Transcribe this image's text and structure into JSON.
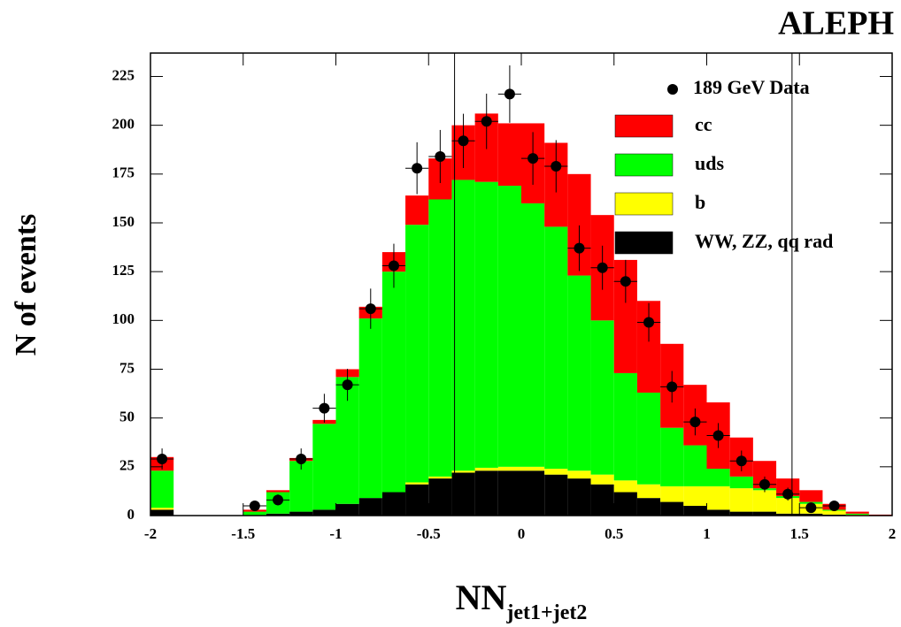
{
  "chart_data": {
    "type": "histogram",
    "title": "ALEPH",
    "ylabel": "N of events",
    "xlabel": "NN",
    "xlabel_sub": "jet1+jet2",
    "bins": [
      -2,
      -1.875,
      -1.75,
      -1.625,
      -1.5,
      -1.375,
      -1.25,
      -1.125,
      -1,
      -0.875,
      -0.75,
      -0.625,
      -0.5,
      -0.375,
      -0.25,
      -0.125,
      0,
      0.125,
      0.25,
      0.375,
      0.5,
      0.625,
      0.75,
      0.875,
      1,
      1.125,
      1.25,
      1.375,
      1.5,
      1.625,
      1.75,
      1.875,
      2
    ],
    "series": [
      {
        "name": "WW, ZZ, qq rad",
        "color": "#000000",
        "values": [
          3,
          0,
          0,
          0,
          0,
          1,
          2,
          3,
          6,
          9,
          12,
          16,
          19,
          22,
          23,
          23,
          23,
          21,
          19,
          16,
          12,
          9,
          7,
          5,
          3,
          2,
          2,
          1,
          1,
          0.5,
          0,
          0
        ]
      },
      {
        "name": "b",
        "color": "#ffff00",
        "values": [
          1,
          0,
          0,
          0,
          0,
          0,
          0,
          0,
          0,
          0,
          0,
          1,
          1,
          1,
          1.5,
          2,
          2,
          3,
          4,
          5,
          6,
          7,
          8,
          10,
          12,
          12,
          11,
          8,
          5,
          2,
          0.5,
          0
        ]
      },
      {
        "name": "uds",
        "color": "#00ff00",
        "values": [
          19,
          0,
          0,
          0,
          2,
          11,
          26,
          44,
          65,
          92,
          113,
          132,
          142,
          149,
          146.5,
          144,
          135,
          124,
          100,
          79,
          55,
          47,
          30,
          21,
          9,
          6,
          1,
          1,
          1,
          0.5,
          0.5,
          0
        ]
      },
      {
        "name": "cc",
        "color": "#ff0000",
        "values": [
          7,
          0,
          0,
          0,
          1,
          1,
          1.5,
          2,
          4,
          6,
          10,
          15,
          21,
          28,
          35,
          32,
          41,
          43,
          52,
          54,
          58,
          47,
          43,
          31,
          34,
          20,
          14,
          9,
          6,
          3,
          1,
          0.5
        ]
      }
    ],
    "data": {
      "name": "189 GeV Data",
      "color": "#000000",
      "x": [
        -1.9375,
        -1.4375,
        -1.3125,
        -1.1875,
        -1.0625,
        -0.9375,
        -0.8125,
        -0.6875,
        -0.5625,
        -0.4375,
        -0.3125,
        -0.1875,
        -0.0625,
        0.0625,
        0.1875,
        0.3125,
        0.4375,
        0.5625,
        0.6875,
        0.8125,
        0.9375,
        1.0625,
        1.1875,
        1.3125,
        1.4375,
        1.5625,
        1.6875
      ],
      "values": [
        29,
        5,
        8,
        29,
        55,
        67,
        106,
        128,
        178,
        184,
        192,
        202,
        216,
        183,
        179,
        137,
        127,
        120,
        99,
        66,
        48,
        41,
        28,
        16,
        11,
        4,
        5
      ],
      "errors": [
        5.4,
        2.2,
        2.8,
        5.4,
        7.4,
        8.2,
        10.3,
        11.3,
        13.3,
        13.6,
        13.9,
        14.2,
        14.7,
        13.5,
        13.4,
        11.7,
        11.3,
        11,
        9.9,
        8.1,
        6.9,
        6.4,
        5.3,
        4,
        3.3,
        2,
        2.2
      ]
    },
    "cut_lines": [
      -0.36,
      1.46
    ],
    "xlim": [
      -2,
      2
    ],
    "ylim": [
      0,
      237
    ],
    "xticks": [
      -2,
      -1.5,
      -1,
      -0.5,
      0,
      0.5,
      1,
      1.5,
      2
    ],
    "yticks": [
      0,
      25,
      50,
      75,
      100,
      125,
      150,
      175,
      200,
      225
    ]
  }
}
